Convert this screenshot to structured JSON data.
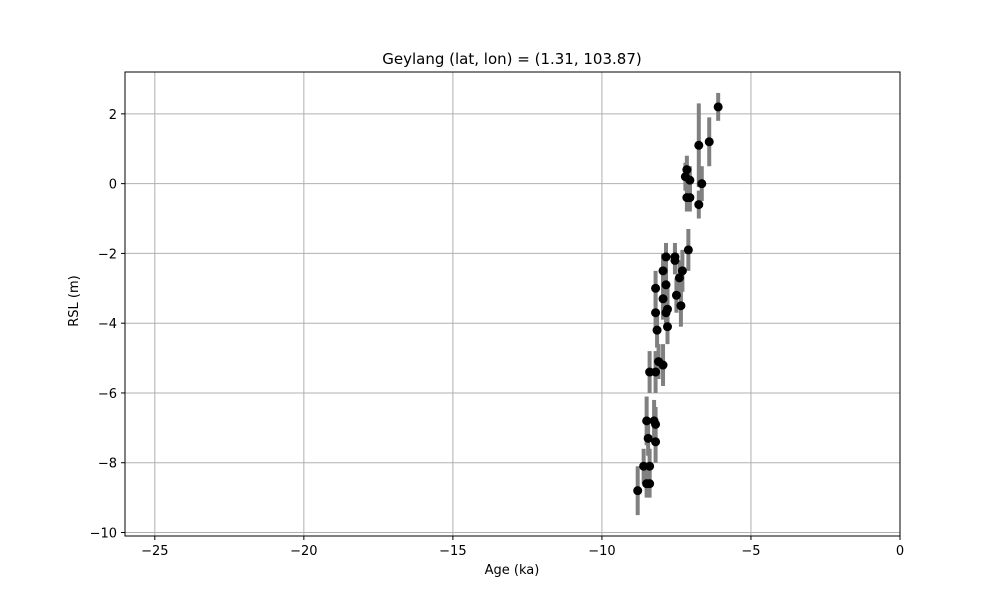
{
  "chart_data": {
    "type": "scatter",
    "title": "Geylang (lat, lon) = (1.31, 103.87)",
    "xlabel": "Age (ka)",
    "ylabel": "RSL (m)",
    "xlim": [
      -26,
      0
    ],
    "ylim": [
      -10.1,
      3.2
    ],
    "xticks": [
      -25,
      -20,
      -15,
      -10,
      -5,
      0
    ],
    "yticks": [
      -10,
      -8,
      -6,
      -4,
      -2,
      0,
      2
    ],
    "grid": true,
    "marker_color": "#000000",
    "errorbar_color": "#808080",
    "grid_color": "#b0b0b0",
    "points": [
      {
        "x": -8.8,
        "y": -8.8,
        "err": 0.7
      },
      {
        "x": -8.6,
        "y": -8.1,
        "err": 0.5
      },
      {
        "x": -8.5,
        "y": -8.6,
        "err": 0.4
      },
      {
        "x": -8.4,
        "y": -8.6,
        "err": 0.4
      },
      {
        "x": -8.4,
        "y": -8.1,
        "err": 0.5
      },
      {
        "x": -8.5,
        "y": -6.8,
        "err": 0.7
      },
      {
        "x": -8.45,
        "y": -7.3,
        "err": 0.5
      },
      {
        "x": -8.25,
        "y": -6.8,
        "err": 0.6
      },
      {
        "x": -8.2,
        "y": -6.9,
        "err": 0.5
      },
      {
        "x": -8.2,
        "y": -7.4,
        "err": 0.6
      },
      {
        "x": -8.4,
        "y": -5.4,
        "err": 0.6
      },
      {
        "x": -8.2,
        "y": -5.4,
        "err": 0.6
      },
      {
        "x": -8.1,
        "y": -5.1,
        "err": 0.5
      },
      {
        "x": -7.95,
        "y": -5.2,
        "err": 0.6
      },
      {
        "x": -8.15,
        "y": -4.2,
        "err": 0.5
      },
      {
        "x": -8.2,
        "y": -3.7,
        "err": 0.5
      },
      {
        "x": -7.8,
        "y": -4.1,
        "err": 0.5
      },
      {
        "x": -8.2,
        "y": -3.0,
        "err": 0.5
      },
      {
        "x": -7.95,
        "y": -3.3,
        "err": 0.6
      },
      {
        "x": -7.8,
        "y": -3.6,
        "err": 0.6
      },
      {
        "x": -7.85,
        "y": -3.7,
        "err": 0.5
      },
      {
        "x": -7.85,
        "y": -2.9,
        "err": 0.6
      },
      {
        "x": -7.95,
        "y": -2.5,
        "err": 0.5
      },
      {
        "x": -7.85,
        "y": -2.1,
        "err": 0.4
      },
      {
        "x": -7.55,
        "y": -2.2,
        "err": 0.4
      },
      {
        "x": -7.55,
        "y": -2.1,
        "err": 0.4
      },
      {
        "x": -7.5,
        "y": -3.2,
        "err": 0.5
      },
      {
        "x": -7.4,
        "y": -2.7,
        "err": 0.5
      },
      {
        "x": -7.3,
        "y": -2.5,
        "err": 0.6
      },
      {
        "x": -7.35,
        "y": -3.5,
        "err": 0.6
      },
      {
        "x": -7.1,
        "y": -1.9,
        "err": 0.6
      },
      {
        "x": -7.2,
        "y": 0.2,
        "err": 0.4
      },
      {
        "x": -7.15,
        "y": 0.4,
        "err": 0.4
      },
      {
        "x": -7.15,
        "y": -0.4,
        "err": 0.4
      },
      {
        "x": -7.05,
        "y": 0.1,
        "err": 0.4
      },
      {
        "x": -7.05,
        "y": -0.4,
        "err": 0.4
      },
      {
        "x": -6.75,
        "y": -0.6,
        "err": 0.4
      },
      {
        "x": -6.75,
        "y": 1.1,
        "err": 1.2
      },
      {
        "x": -6.65,
        "y": 0.0,
        "err": 0.5
      },
      {
        "x": -6.4,
        "y": 1.2,
        "err": 0.7
      },
      {
        "x": -6.1,
        "y": 2.2,
        "err": 0.4
      }
    ]
  }
}
